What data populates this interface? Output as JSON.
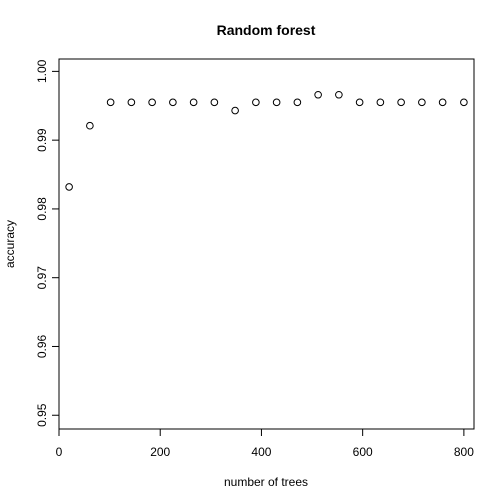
{
  "chart_data": {
    "type": "scatter",
    "title": "Random forest",
    "xlabel": "number of trees",
    "ylabel": "accuracy",
    "xlim": [
      0,
      820
    ],
    "ylim": [
      0.948,
      1.0018
    ],
    "xticks": [
      0,
      200,
      400,
      600,
      800
    ],
    "yticks": [
      0.95,
      0.96,
      0.97,
      0.98,
      0.99,
      1.0
    ],
    "xtick_labels": [
      "0",
      "200",
      "400",
      "600",
      "800"
    ],
    "ytick_labels": [
      "0.95",
      "0.96",
      "0.97",
      "0.98",
      "0.99",
      "1.00"
    ],
    "grid": false,
    "marker": "open-circle",
    "series": [
      {
        "x": [
          20,
          61,
          102,
          143,
          184,
          225,
          266,
          307,
          348,
          389,
          430,
          471,
          512,
          553,
          594,
          635,
          676,
          717,
          758,
          800
        ],
        "y": [
          0.9832,
          0.9921,
          0.9955,
          0.9955,
          0.9955,
          0.9955,
          0.9955,
          0.9955,
          0.9943,
          0.9955,
          0.9955,
          0.9955,
          0.9966,
          0.9966,
          0.9955,
          0.9955,
          0.9955,
          0.9955,
          0.9955,
          0.9955
        ]
      }
    ]
  }
}
